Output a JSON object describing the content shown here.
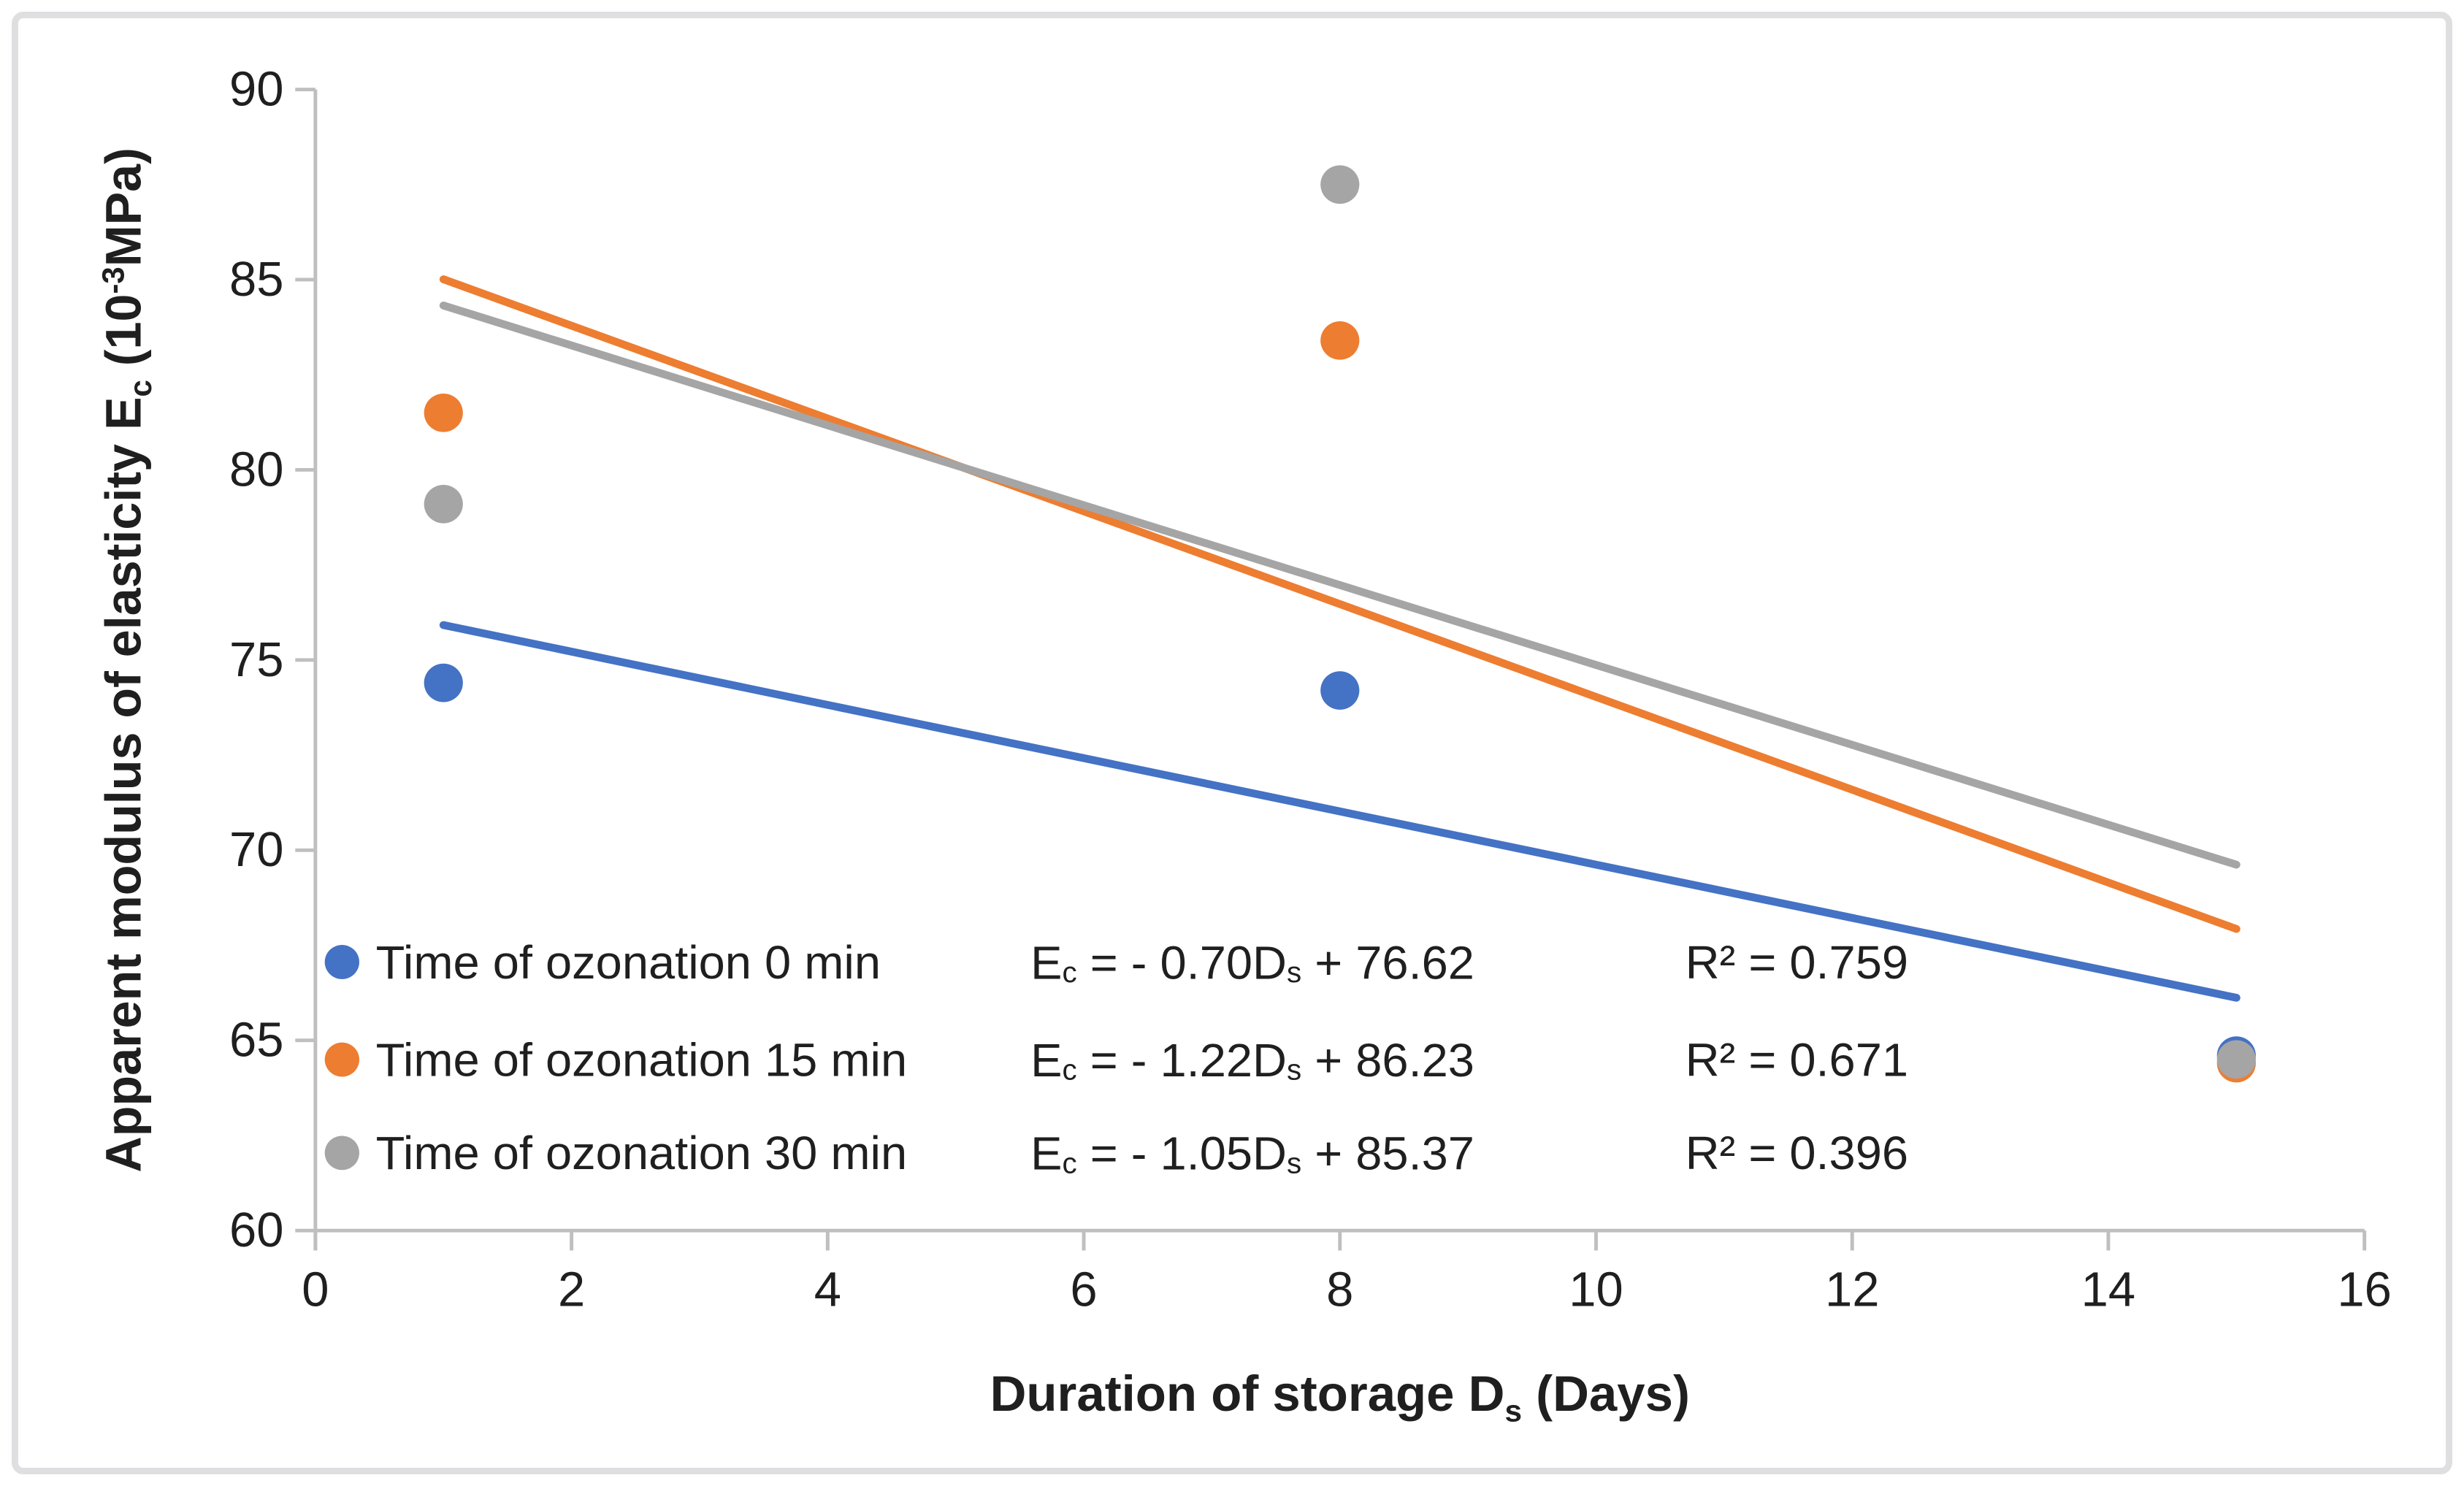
{
  "frame": {
    "background": "#ffffff",
    "border_color": "#dfdfe1"
  },
  "chart_data": {
    "type": "scatter",
    "title": "",
    "axis_color": "#bfbfbf",
    "text_color": "#1f1f1f",
    "grid": "off",
    "legend_position": "inside-bottom-left",
    "x_axis": {
      "title_parts": [
        {
          "text": "Duration of storage  D"
        },
        {
          "text": "s",
          "script": "sub"
        },
        {
          "text": " (Days)"
        }
      ],
      "ticks": [
        0,
        2,
        4,
        6,
        8,
        10,
        12,
        14,
        16
      ],
      "range": [
        0,
        16
      ]
    },
    "y_axis": {
      "title_parts": [
        {
          "text": "Apparent modulus of elasticity E"
        },
        {
          "text": "c",
          "script": "sub"
        },
        {
          "text": " (10"
        },
        {
          "text": "-3",
          "script": "sup"
        },
        {
          "text": "MPa)"
        }
      ],
      "ticks": [
        60,
        65,
        70,
        75,
        80,
        85,
        90
      ],
      "range": [
        60,
        90
      ]
    },
    "series": [
      {
        "name": "Time of ozonation 0 min",
        "color": "#4472c4",
        "points": [
          {
            "x": 1,
            "y": 74.4
          },
          {
            "x": 8,
            "y": 74.2
          },
          {
            "x": 15,
            "y": 64.6
          }
        ],
        "trendline": {
          "slope": -0.7,
          "intercept": 76.62,
          "x_start": 1,
          "x_end": 15
        },
        "equation_parts": [
          {
            "text": "E"
          },
          {
            "text": "c",
            "script": "sub"
          },
          {
            "text": " = - 0.70D"
          },
          {
            "text": "s",
            "script": "sub"
          },
          {
            "text": " + 76.62"
          }
        ],
        "r_squared": "R² = 0.759"
      },
      {
        "name": "Time of ozonation 15 min",
        "color": "#ed7d31",
        "points": [
          {
            "x": 1,
            "y": 81.5
          },
          {
            "x": 8,
            "y": 83.4
          },
          {
            "x": 15,
            "y": 64.4
          }
        ],
        "trendline": {
          "slope": -1.22,
          "intercept": 86.23,
          "x_start": 1,
          "x_end": 15
        },
        "equation_parts": [
          {
            "text": "E"
          },
          {
            "text": "c",
            "script": "sub"
          },
          {
            "text": " = - 1.22D"
          },
          {
            "text": "s",
            "script": "sub"
          },
          {
            "text": " + 86.23"
          }
        ],
        "r_squared": "R² = 0.671"
      },
      {
        "name": "Time of ozonation 30 min",
        "color": "#a5a5a5",
        "points": [
          {
            "x": 1,
            "y": 79.1
          },
          {
            "x": 8,
            "y": 87.5
          },
          {
            "x": 15,
            "y": 64.5
          }
        ],
        "trendline": {
          "slope": -1.05,
          "intercept": 85.37,
          "x_start": 1,
          "x_end": 15
        },
        "equation_parts": [
          {
            "text": "E"
          },
          {
            "text": "c",
            "script": "sub"
          },
          {
            "text": " = - 1.05D"
          },
          {
            "text": "s",
            "script": "sub"
          },
          {
            "text": " + 85.37"
          }
        ],
        "r_squared": "R² = 0.396"
      }
    ]
  }
}
